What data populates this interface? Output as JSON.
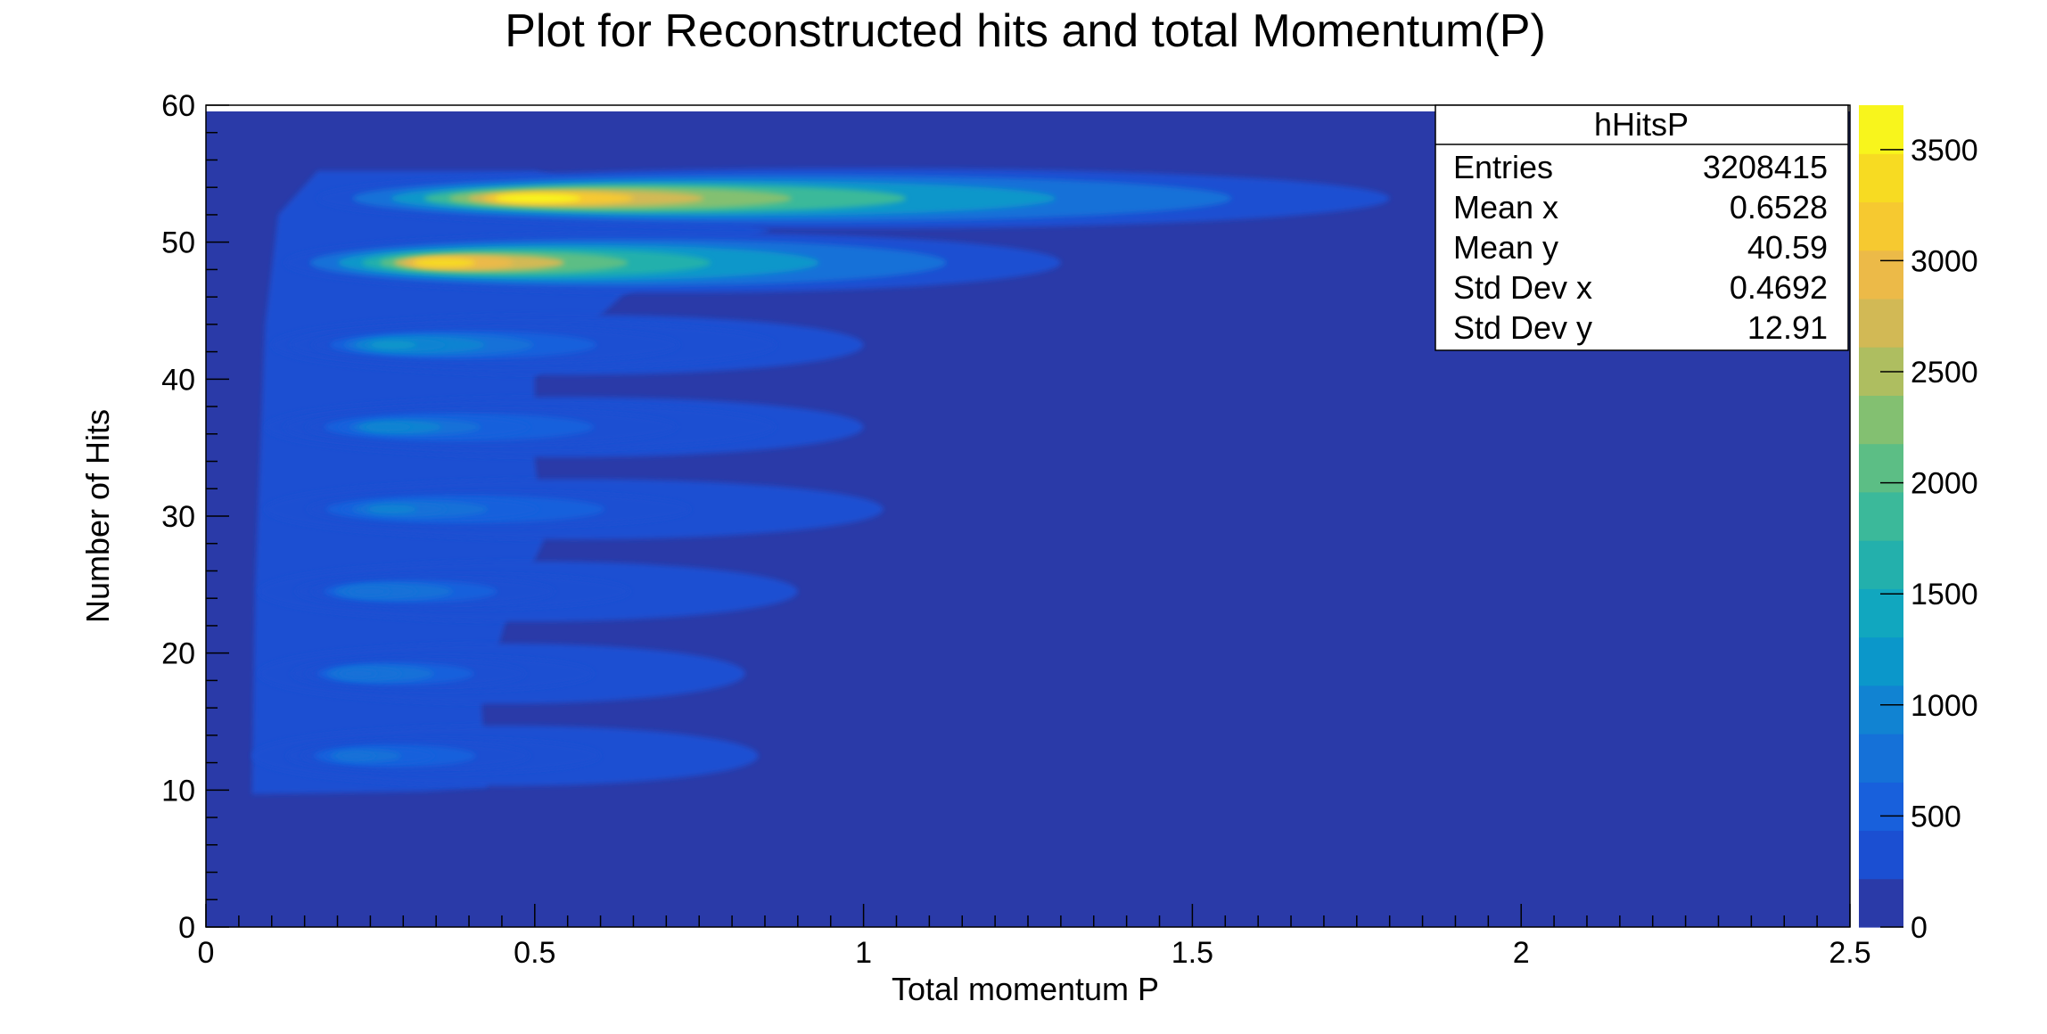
{
  "chart_data": {
    "type": "heatmap",
    "title": "Plot for Reconstructed hits and total Momentum(P)",
    "xlabel": "Total momentum P",
    "ylabel": "Number of Hits",
    "xlim": [
      0,
      2.5
    ],
    "ylim": [
      0,
      60
    ],
    "x_ticks": [
      0,
      0.5,
      1,
      1.5,
      2,
      2.5
    ],
    "x_tick_labels": [
      "0",
      "0.5",
      "1",
      "1.5",
      "2",
      "2.5"
    ],
    "y_ticks": [
      0,
      10,
      20,
      30,
      40,
      50,
      60
    ],
    "y_tick_labels": [
      "0",
      "10",
      "20",
      "30",
      "40",
      "50",
      "60"
    ],
    "colorbar": {
      "zlim": [
        0,
        3700
      ],
      "ticks": [
        0,
        500,
        1000,
        1500,
        2000,
        2500,
        3000,
        3500
      ],
      "tick_labels": [
        "0",
        "500",
        "1000",
        "1500",
        "2000",
        "2500",
        "3000",
        "3500"
      ],
      "palette": [
        "#2a3aa8",
        "#1b4fd2",
        "#1860dc",
        "#1571d8",
        "#1183d2",
        "#0b97ca",
        "#11a7bf",
        "#23b0ac",
        "#3bb99a",
        "#5cbe85",
        "#83c071",
        "#aebe60",
        "#d2b955",
        "#ecba48",
        "#f6c930",
        "#f7db22",
        "#f8f51c"
      ]
    },
    "bands": [
      {
        "y": 12.5,
        "x_start": 0.07,
        "x_end": 0.84,
        "peak": 800
      },
      {
        "y": 18.5,
        "x_start": 0.08,
        "x_end": 0.82,
        "peak": 820
      },
      {
        "y": 24.5,
        "x_start": 0.08,
        "x_end": 0.9,
        "peak": 850
      },
      {
        "y": 30.5,
        "x_start": 0.09,
        "x_end": 1.03,
        "peak": 900
      },
      {
        "y": 36.5,
        "x_start": 0.09,
        "x_end": 1.0,
        "peak": 950
      },
      {
        "y": 42.5,
        "x_start": 0.1,
        "x_end": 1.0,
        "peak": 1100
      },
      {
        "y": 48.5,
        "x_start": 0.12,
        "x_end": 1.3,
        "peak": 3300
      },
      {
        "y": 53.2,
        "x_start": 0.17,
        "x_end": 1.8,
        "peak": 3500
      }
    ],
    "stats": {
      "name": "hHitsP",
      "rows": [
        {
          "label": "Entries",
          "value": "3208415"
        },
        {
          "label": "Mean x",
          "value": "0.6528"
        },
        {
          "label": "Mean y",
          "value": "40.59"
        },
        {
          "label": "Std Dev x",
          "value": "0.4692"
        },
        {
          "label": "Std Dev y",
          "value": "12.91"
        }
      ]
    }
  }
}
